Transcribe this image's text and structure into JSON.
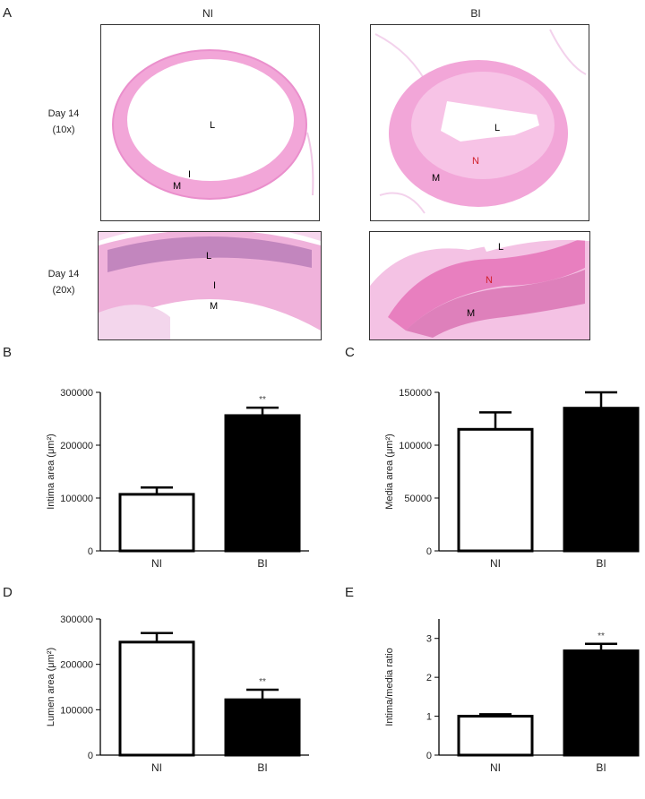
{
  "panel_letters": {
    "A": "A",
    "B": "B",
    "C": "C",
    "D": "D",
    "E": "E"
  },
  "histology": {
    "columns": [
      "NI",
      "BI"
    ],
    "rows": [
      {
        "line1": "Day 14",
        "line2": "(10x)"
      },
      {
        "line1": "Day 14",
        "line2": "(20x)"
      }
    ],
    "labels": {
      "lumen": "L",
      "intima": "I",
      "media": "M",
      "neointima": "N"
    },
    "colors": {
      "tissue_pink": "#f2a6d8",
      "tissue_light": "#f7c9ea",
      "nuclei": "#6a3a8c",
      "neointima_label": "#d0202a"
    }
  },
  "chart_data": [
    {
      "id": "B",
      "type": "bar",
      "categories": [
        "NI",
        "BI"
      ],
      "values": [
        107000,
        256000
      ],
      "errors": [
        13000,
        15000
      ],
      "significance": [
        "",
        "**"
      ],
      "ylabel": "Intima area (μm²)",
      "ylim": [
        0,
        300000
      ],
      "yticks": [
        "0",
        "100000",
        "200000",
        "300000"
      ],
      "bar_fills": [
        "#ffffff",
        "#000000"
      ]
    },
    {
      "id": "C",
      "type": "bar",
      "categories": [
        "NI",
        "BI"
      ],
      "values": [
        115000,
        135000
      ],
      "errors": [
        16000,
        15000
      ],
      "significance": [
        "",
        ""
      ],
      "ylabel": "Media area (μm²)",
      "ylim": [
        0,
        150000
      ],
      "yticks": [
        "0",
        "50000",
        "100000",
        "150000"
      ],
      "bar_fills": [
        "#ffffff",
        "#000000"
      ]
    },
    {
      "id": "D",
      "type": "bar",
      "categories": [
        "NI",
        "BI"
      ],
      "values": [
        249000,
        122000
      ],
      "errors": [
        20000,
        22000
      ],
      "significance": [
        "",
        "**"
      ],
      "ylabel": "Lumen area (μm²)",
      "ylim": [
        0,
        300000
      ],
      "yticks": [
        "0",
        "100000",
        "200000",
        "300000"
      ],
      "bar_fills": [
        "#ffffff",
        "#000000"
      ]
    },
    {
      "id": "E",
      "type": "bar",
      "categories": [
        "NI",
        "BI"
      ],
      "values": [
        1.0,
        2.68
      ],
      "errors": [
        0.05,
        0.18
      ],
      "significance": [
        "",
        "**"
      ],
      "ylabel": "Intima/media ratio",
      "ylim": [
        0,
        3.5
      ],
      "yticks": [
        "0",
        "1",
        "2",
        "3"
      ],
      "bar_fills": [
        "#ffffff",
        "#000000"
      ]
    }
  ]
}
